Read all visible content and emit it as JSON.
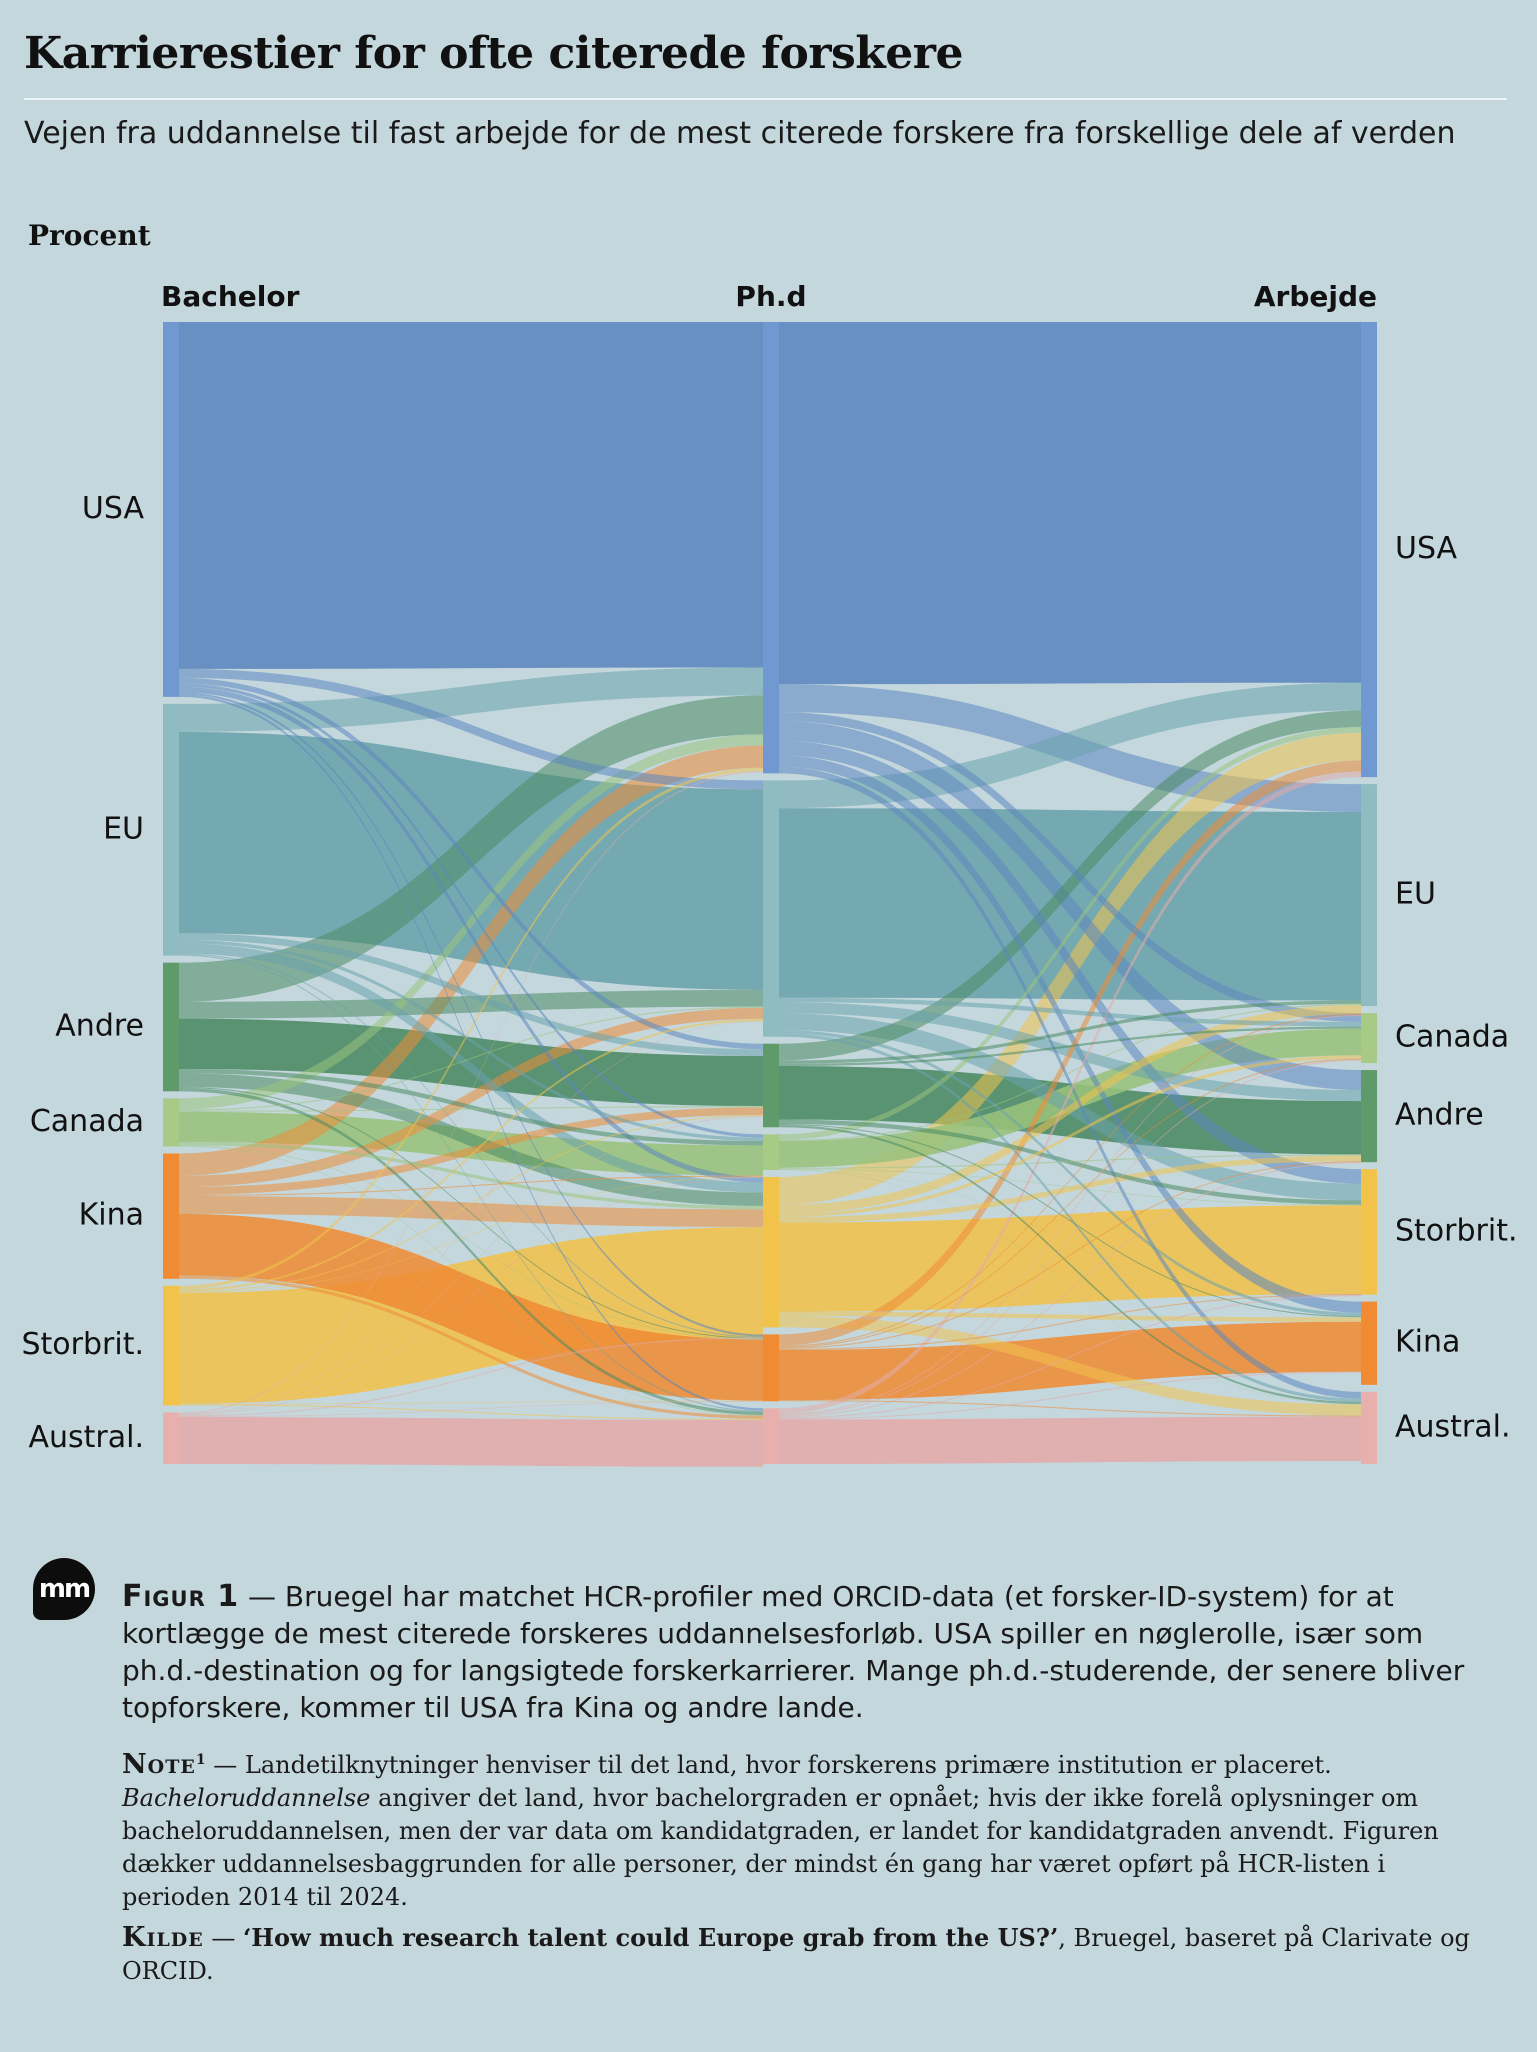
{
  "title": "Karrierestier for ofte citerede forskere",
  "subtitle": "Vejen fra uddannelse til fast arbejde for de mest citerede forskere fra forskellige dele af verden",
  "unit_label": "Procent",
  "chart_data": {
    "type": "sankey",
    "stage_labels": [
      "Bachelor",
      "Ph.d",
      "Arbejde"
    ],
    "nodes": {
      "bachelor": [
        {
          "id": "USA",
          "label": "USA",
          "value": 33.5
        },
        {
          "id": "EU",
          "label": "EU",
          "value": 22.5
        },
        {
          "id": "Andre",
          "label": "Andre",
          "value": 11.5
        },
        {
          "id": "Canada",
          "label": "Canada",
          "value": 4.3
        },
        {
          "id": "Kina",
          "label": "Kina",
          "value": 11.2
        },
        {
          "id": "Storbrit",
          "label": "Storbrit.",
          "value": 10.7
        },
        {
          "id": "Austral",
          "label": "Austral.",
          "value": 4.6
        }
      ],
      "phd": [
        {
          "id": "USA",
          "label": "USA",
          "value": 40.5
        },
        {
          "id": "EU",
          "label": "EU",
          "value": 23.0
        },
        {
          "id": "Andre",
          "label": "Andre",
          "value": 7.5
        },
        {
          "id": "Canada",
          "label": "Canada",
          "value": 3.2
        },
        {
          "id": "Storbrit",
          "label": "Storbrit.",
          "value": 13.5
        },
        {
          "id": "Kina",
          "label": "Kina",
          "value": 6.0
        },
        {
          "id": "Austral",
          "label": "Austral.",
          "value": 5.0
        }
      ],
      "work": [
        {
          "id": "USA",
          "label": "USA",
          "value": 41.0
        },
        {
          "id": "EU",
          "label": "EU",
          "value": 20.0
        },
        {
          "id": "Canada",
          "label": "Canada",
          "value": 4.5
        },
        {
          "id": "Andre",
          "label": "Andre",
          "value": 8.3
        },
        {
          "id": "Storbrit",
          "label": "Storbrit.",
          "value": 11.3
        },
        {
          "id": "Kina",
          "label": "Kina",
          "value": 7.5
        },
        {
          "id": "Austral",
          "label": "Austral.",
          "value": 6.5
        }
      ]
    },
    "links_bachelor_phd": [
      [
        "USA",
        "USA",
        31.0
      ],
      [
        "USA",
        "EU",
        0.8
      ],
      [
        "USA",
        "Andre",
        0.5
      ],
      [
        "USA",
        "Canada",
        0.3
      ],
      [
        "USA",
        "Storbrit",
        0.5
      ],
      [
        "USA",
        "Kina",
        0.2
      ],
      [
        "USA",
        "Austral",
        0.2
      ],
      [
        "EU",
        "USA",
        2.5
      ],
      [
        "EU",
        "EU",
        18.0
      ],
      [
        "EU",
        "Andre",
        0.6
      ],
      [
        "EU",
        "Canada",
        0.3
      ],
      [
        "EU",
        "Storbrit",
        0.9
      ],
      [
        "EU",
        "Kina",
        0.1
      ],
      [
        "EU",
        "Austral",
        0.1
      ],
      [
        "Andre",
        "USA",
        3.5
      ],
      [
        "Andre",
        "EU",
        1.5
      ],
      [
        "Andre",
        "Andre",
        4.5
      ],
      [
        "Andre",
        "Canada",
        0.4
      ],
      [
        "Andre",
        "Storbrit",
        1.2
      ],
      [
        "Andre",
        "Kina",
        0.1
      ],
      [
        "Andre",
        "Austral",
        0.3
      ],
      [
        "Canada",
        "USA",
        1.0
      ],
      [
        "Canada",
        "EU",
        0.1
      ],
      [
        "Canada",
        "Andre",
        0.1
      ],
      [
        "Canada",
        "Canada",
        2.7
      ],
      [
        "Canada",
        "Storbrit",
        0.3
      ],
      [
        "Canada",
        "Kina",
        0.05
      ],
      [
        "Canada",
        "Austral",
        0.05
      ],
      [
        "Kina",
        "USA",
        2.0
      ],
      [
        "Kina",
        "EU",
        1.0
      ],
      [
        "Kina",
        "Andre",
        0.7
      ],
      [
        "Kina",
        "Canada",
        0.1
      ],
      [
        "Kina",
        "Storbrit",
        1.6
      ],
      [
        "Kina",
        "Kina",
        5.5
      ],
      [
        "Kina",
        "Austral",
        0.3
      ],
      [
        "Storbrit",
        "USA",
        0.3
      ],
      [
        "Storbrit",
        "EU",
        0.2
      ],
      [
        "Storbrit",
        "Andre",
        0.1
      ],
      [
        "Storbrit",
        "Canada",
        0.05
      ],
      [
        "Storbrit",
        "Storbrit",
        9.9
      ],
      [
        "Storbrit",
        "Kina",
        0.05
      ],
      [
        "Storbrit",
        "Austral",
        0.1
      ],
      [
        "Austral",
        "USA",
        0.1
      ],
      [
        "Austral",
        "EU",
        0.05
      ],
      [
        "Austral",
        "Andre",
        0.05
      ],
      [
        "Austral",
        "Canada",
        0.05
      ],
      [
        "Austral",
        "Storbrit",
        0.1
      ],
      [
        "Austral",
        "Kina",
        0.05
      ],
      [
        "Austral",
        "Austral",
        4.2
      ]
    ],
    "links_phd_work": [
      [
        "USA",
        "USA",
        32.5
      ],
      [
        "USA",
        "EU",
        2.5
      ],
      [
        "USA",
        "Canada",
        0.8
      ],
      [
        "USA",
        "Andre",
        1.8
      ],
      [
        "USA",
        "Storbrit",
        1.3
      ],
      [
        "USA",
        "Kina",
        1.0
      ],
      [
        "USA",
        "Austral",
        0.6
      ],
      [
        "EU",
        "USA",
        2.5
      ],
      [
        "EU",
        "EU",
        17.0
      ],
      [
        "EU",
        "Canada",
        0.4
      ],
      [
        "EU",
        "Andre",
        1.0
      ],
      [
        "EU",
        "Storbrit",
        1.5
      ],
      [
        "EU",
        "Kina",
        0.3
      ],
      [
        "EU",
        "Austral",
        0.3
      ],
      [
        "Andre",
        "USA",
        1.5
      ],
      [
        "Andre",
        "EU",
        0.3
      ],
      [
        "Andre",
        "Canada",
        0.2
      ],
      [
        "Andre",
        "Andre",
        4.8
      ],
      [
        "Andre",
        "Storbrit",
        0.4
      ],
      [
        "Andre",
        "Kina",
        0.1
      ],
      [
        "Andre",
        "Austral",
        0.2
      ],
      [
        "Canada",
        "USA",
        0.5
      ],
      [
        "Canada",
        "EU",
        0.1
      ],
      [
        "Canada",
        "Canada",
        2.4
      ],
      [
        "Canada",
        "Andre",
        0.1
      ],
      [
        "Canada",
        "Storbrit",
        0.05
      ],
      [
        "Canada",
        "Kina",
        0.02
      ],
      [
        "Canada",
        "Austral",
        0.03
      ],
      [
        "Storbrit",
        "USA",
        2.5
      ],
      [
        "Storbrit",
        "EU",
        0.8
      ],
      [
        "Storbrit",
        "Canada",
        0.3
      ],
      [
        "Storbrit",
        "Andre",
        0.5
      ],
      [
        "Storbrit",
        "Storbrit",
        8.0
      ],
      [
        "Storbrit",
        "Kina",
        0.4
      ],
      [
        "Storbrit",
        "Austral",
        1.0
      ],
      [
        "Kina",
        "USA",
        1.0
      ],
      [
        "Kina",
        "EU",
        0.1
      ],
      [
        "Kina",
        "Canada",
        0.1
      ],
      [
        "Kina",
        "Andre",
        0.1
      ],
      [
        "Kina",
        "Storbrit",
        0.1
      ],
      [
        "Kina",
        "Kina",
        4.5
      ],
      [
        "Kina",
        "Austral",
        0.1
      ],
      [
        "Austral",
        "USA",
        0.5
      ],
      [
        "Austral",
        "EU",
        0.1
      ],
      [
        "Austral",
        "Canada",
        0.1
      ],
      [
        "Austral",
        "Andre",
        0.1
      ],
      [
        "Austral",
        "Storbrit",
        0.1
      ],
      [
        "Austral",
        "Kina",
        0.1
      ],
      [
        "Austral",
        "Austral",
        4.0
      ]
    ],
    "colors": {
      "USA": "#5b86bf",
      "EU": "#6aa3ab",
      "Andre": "#4a8a63",
      "Canada": "#9ac27b",
      "Kina": "#ee8c35",
      "Storbrit": "#f0c24c",
      "Austral": "#e3aba8"
    },
    "node_colors": {
      "USA": "#7099d2",
      "EU": "#8fbcc1",
      "Andre": "#5f9a6b",
      "Canada": "#a7cb86",
      "Kina": "#f08a33",
      "Storbrit": "#f2c34a",
      "Austral": "#e8b0ad"
    }
  },
  "caption": {
    "label": "Figur 1",
    "dash": " — ",
    "text": "Bruegel har matchet HCR-profiler med ORCID-data (et forsker-ID-system) for at kortlægge de mest citerede forskeres uddannelsesforløb. USA spiller en nøglerolle, især som ph.d.-destination og for langsigtede forskerkarrierer. Mange ph.d.-studerende, der senere bliver topforskere, kommer til USA fra Kina og andre lande."
  },
  "note": {
    "label": "Note",
    "sup": "1",
    "dash": " — ",
    "text_before": "Landetilknytninger henviser til det land, hvor forskerens primære institution er placeret. ",
    "emph": "Bacheloruddannelse",
    "text_after": " angiver det land, hvor bachelorgraden er opnået; hvis der ikke forelå oplysninger om bacheloruddannelsen, men der var data om kandidatgraden, er landet for kandidatgraden anvendt. Figuren dækker uddannelsesbaggrunden for alle personer, der mindst én gang har været opført på HCR-listen i perioden 2014 til 2024."
  },
  "source": {
    "label": "Kilde",
    "dash": " — ",
    "title": "‘How much research talent could Europe grab from the US?’",
    "rest": ", Bruegel, baseret på Clarivate og ORCID."
  },
  "logo_text": "mm"
}
